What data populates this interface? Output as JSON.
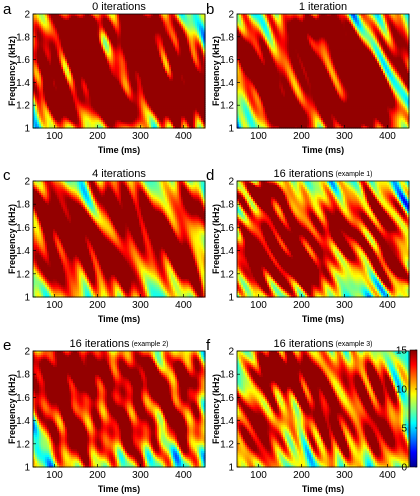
{
  "chart_data": [
    {
      "type": "heatmap",
      "panel_label": "a",
      "title": "0 iterations",
      "subtitle": "",
      "xlabel": "Time (ms)",
      "ylabel": "Frequency (kHz)",
      "xticks": [
        "100",
        "200",
        "300",
        "400"
      ],
      "yticks": [
        "1",
        "1.2",
        "1.4",
        "1.6",
        "1.8",
        "2"
      ],
      "xlim": [
        50,
        450
      ],
      "ylim": [
        1,
        2
      ],
      "blobs": [
        [
          0.08,
          0.55,
          0.09,
          0.3,
          -0.3
        ],
        [
          0.24,
          0.72,
          0.07,
          0.28,
          -0.35
        ],
        [
          0.4,
          0.45,
          0.09,
          0.3,
          -0.25
        ],
        [
          0.58,
          0.68,
          0.07,
          0.26,
          -0.3
        ],
        [
          0.72,
          0.5,
          0.08,
          0.32,
          -0.25
        ],
        [
          0.88,
          0.65,
          0.07,
          0.28,
          -0.3
        ],
        [
          0.15,
          0.2,
          0.08,
          0.14,
          -0.2
        ],
        [
          0.5,
          0.18,
          0.1,
          0.12,
          -0.2
        ],
        [
          0.82,
          0.2,
          0.08,
          0.14,
          -0.25
        ],
        [
          0.32,
          0.9,
          0.07,
          0.08,
          -0.1
        ],
        [
          0.64,
          0.92,
          0.07,
          0.07,
          -0.1
        ],
        [
          0.96,
          0.3,
          0.05,
          0.2,
          -0.2
        ]
      ],
      "seed": 11
    },
    {
      "type": "heatmap",
      "panel_label": "b",
      "title": "1 iteration",
      "subtitle": "",
      "xlabel": "Time (ms)",
      "ylabel": "Frequency (kHz)",
      "xticks": [
        "100",
        "200",
        "300",
        "400"
      ],
      "yticks": [
        "1",
        "1.2",
        "1.4",
        "1.6",
        "1.8",
        "2"
      ],
      "xlim": [
        50,
        450
      ],
      "ylim": [
        1,
        2
      ],
      "blobs": [
        [
          0.06,
          0.6,
          0.08,
          0.3,
          -0.3
        ],
        [
          0.2,
          0.35,
          0.08,
          0.3,
          -0.3
        ],
        [
          0.36,
          0.7,
          0.08,
          0.26,
          -0.3
        ],
        [
          0.52,
          0.3,
          0.09,
          0.26,
          -0.25
        ],
        [
          0.66,
          0.65,
          0.08,
          0.3,
          -0.3
        ],
        [
          0.8,
          0.35,
          0.08,
          0.28,
          -0.3
        ],
        [
          0.94,
          0.7,
          0.06,
          0.26,
          -0.25
        ],
        [
          0.3,
          0.1,
          0.09,
          0.1,
          -0.15
        ],
        [
          0.7,
          0.1,
          0.09,
          0.1,
          -0.15
        ],
        [
          0.46,
          0.9,
          0.08,
          0.08,
          -0.1
        ]
      ],
      "seed": 23
    },
    {
      "type": "heatmap",
      "panel_label": "c",
      "title": "4 iterations",
      "subtitle": "",
      "xlabel": "Time (ms)",
      "ylabel": "Frequency (kHz)",
      "xticks": [
        "100",
        "200",
        "300",
        "400"
      ],
      "yticks": [
        "1",
        "1.2",
        "1.4",
        "1.6",
        "1.8",
        "2"
      ],
      "xlim": [
        50,
        450
      ],
      "ylim": [
        1,
        2
      ],
      "blobs": [
        [
          0.08,
          0.75,
          0.09,
          0.22,
          -0.3
        ],
        [
          0.12,
          0.25,
          0.09,
          0.2,
          -0.3
        ],
        [
          0.3,
          0.5,
          0.09,
          0.28,
          -0.3
        ],
        [
          0.48,
          0.8,
          0.08,
          0.2,
          -0.25
        ],
        [
          0.52,
          0.25,
          0.09,
          0.2,
          -0.25
        ],
        [
          0.7,
          0.6,
          0.09,
          0.26,
          -0.3
        ],
        [
          0.88,
          0.3,
          0.08,
          0.24,
          -0.3
        ],
        [
          0.92,
          0.8,
          0.07,
          0.16,
          -0.25
        ]
      ],
      "seed": 37
    },
    {
      "type": "heatmap",
      "panel_label": "d",
      "title": "16 iterations",
      "subtitle": "(example 1)",
      "xlabel": "Time (ms)",
      "ylabel": "Frequency (kHz)",
      "xticks": [
        "100",
        "200",
        "300",
        "400"
      ],
      "yticks": [
        "1",
        "1.2",
        "1.4",
        "1.6",
        "1.8",
        "2"
      ],
      "xlim": [
        50,
        450
      ],
      "ylim": [
        1,
        2
      ],
      "blobs": [
        [
          0.1,
          0.3,
          0.1,
          0.22,
          -0.2
        ],
        [
          0.3,
          0.55,
          0.14,
          0.24,
          -0.25
        ],
        [
          0.4,
          0.2,
          0.1,
          0.14,
          -0.2
        ],
        [
          0.62,
          0.55,
          0.09,
          0.22,
          -0.3
        ],
        [
          0.84,
          0.7,
          0.09,
          0.2,
          -0.3
        ],
        [
          0.9,
          0.25,
          0.07,
          0.15,
          -0.25
        ],
        [
          0.15,
          0.9,
          0.1,
          0.08,
          -0.1
        ]
      ],
      "seed": 41
    },
    {
      "type": "heatmap",
      "panel_label": "e",
      "title": "16 iterations",
      "subtitle": "(example 2)",
      "xlabel": "Time (ms)",
      "ylabel": "Frequency (kHz)",
      "xticks": [
        "100",
        "200",
        "300",
        "400"
      ],
      "yticks": [
        "1",
        "1.2",
        "1.4",
        "1.6",
        "1.8",
        "2"
      ],
      "xlim": [
        50,
        450
      ],
      "ylim": [
        1,
        2
      ],
      "blobs": [
        [
          0.1,
          0.75,
          0.12,
          0.22,
          -0.15
        ],
        [
          0.32,
          0.85,
          0.12,
          0.16,
          -0.15
        ],
        [
          0.25,
          0.25,
          0.12,
          0.2,
          -0.2
        ],
        [
          0.55,
          0.35,
          0.1,
          0.24,
          -0.25
        ],
        [
          0.65,
          0.8,
          0.1,
          0.18,
          -0.2
        ],
        [
          0.85,
          0.4,
          0.09,
          0.22,
          -0.25
        ],
        [
          0.92,
          0.8,
          0.07,
          0.15,
          -0.2
        ]
      ],
      "seed": 53
    },
    {
      "type": "heatmap",
      "panel_label": "f",
      "title": "16 iterations",
      "subtitle": "(example 3)",
      "xlabel": "Time (ms)",
      "ylabel": "Frequency (kHz)",
      "xticks": [
        "100",
        "200",
        "300",
        "400"
      ],
      "yticks": [
        "1",
        "1.2",
        "1.4",
        "1.6",
        "1.8",
        "2"
      ],
      "xlim": [
        50,
        450
      ],
      "ylim": [
        1,
        2
      ],
      "blobs": [
        [
          0.12,
          0.3,
          0.12,
          0.24,
          -0.15
        ],
        [
          0.4,
          0.78,
          0.16,
          0.2,
          -0.2
        ],
        [
          0.55,
          0.3,
          0.1,
          0.2,
          -0.2
        ],
        [
          0.8,
          0.7,
          0.1,
          0.18,
          -0.2
        ],
        [
          0.85,
          0.25,
          0.09,
          0.16,
          -0.25
        ],
        [
          0.2,
          0.85,
          0.08,
          0.12,
          -0.1
        ]
      ],
      "seed": 67
    }
  ],
  "colorbar": {
    "ticks": [
      "15",
      "10",
      "5",
      "0"
    ],
    "range": [
      0,
      15
    ],
    "colors": [
      "#00008f",
      "#0000ff",
      "#0080ff",
      "#00ffff",
      "#80ff80",
      "#ffff00",
      "#ff8000",
      "#ff0000",
      "#800000"
    ]
  }
}
